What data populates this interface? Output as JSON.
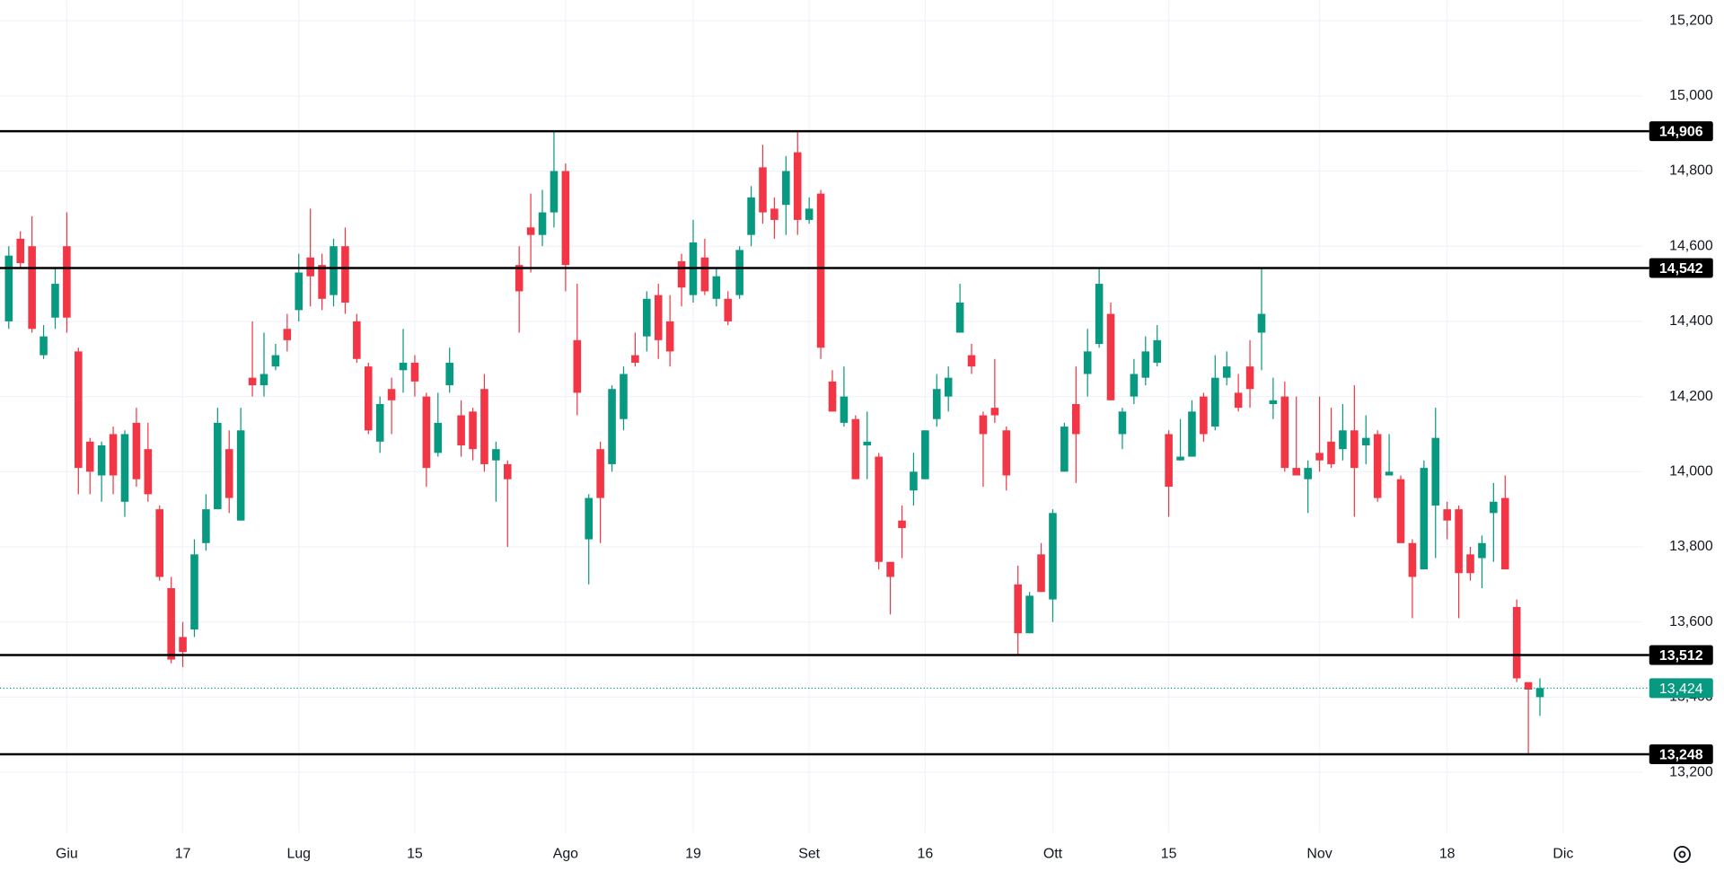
{
  "chart_data": {
    "type": "candlestick",
    "categories": [
      null,
      null,
      null,
      null,
      null,
      "Giu",
      null,
      null,
      null,
      null,
      null,
      null,
      null,
      null,
      null,
      "17",
      null,
      null,
      null,
      null,
      null,
      null,
      null,
      null,
      null,
      "Lug",
      null,
      null,
      null,
      null,
      null,
      null,
      null,
      null,
      null,
      "15",
      null,
      null,
      null,
      null,
      null,
      null,
      null,
      null,
      null,
      null,
      null,
      null,
      "Ago",
      null,
      null,
      null,
      null,
      null,
      null,
      null,
      null,
      null,
      null,
      "19",
      null,
      null,
      null,
      null,
      null,
      null,
      null,
      null,
      null,
      "Set",
      null,
      null,
      null,
      null,
      null,
      null,
      null,
      null,
      null,
      "16",
      null,
      null,
      null,
      null,
      null,
      null,
      null,
      null,
      null,
      null,
      "Ott",
      null,
      null,
      null,
      null,
      null,
      null,
      null,
      null,
      null,
      "15",
      null,
      null,
      null,
      null,
      null,
      null,
      null,
      null,
      null,
      null,
      null,
      null,
      "Nov",
      null,
      null,
      null,
      null,
      null,
      null,
      null,
      null,
      null,
      null,
      "18",
      null,
      null,
      null,
      null,
      null,
      null,
      null,
      null,
      null,
      "Dic"
    ],
    "open": [
      14400,
      14620,
      14600,
      14310,
      14410,
      14600,
      14320,
      14080,
      13990,
      14100,
      13920,
      14130,
      14060,
      13900,
      13690,
      13560,
      13580,
      13810,
      13900,
      14060,
      13870,
      14250,
      14230,
      14280,
      14380,
      14430,
      14570,
      14550,
      14470,
      14600,
      14400,
      14280,
      14080,
      14220,
      14270,
      14290,
      14200,
      14050,
      14230,
      14150,
      14160,
      14220,
      14030,
      14020,
      14550,
      14650,
      14630,
      14690,
      14800,
      14350,
      13820,
      14060,
      14020,
      14140,
      14310,
      14360,
      14470,
      14400,
      14560,
      14470,
      14570,
      14460,
      14460,
      14470,
      14630,
      14810,
      14700,
      14710,
      14850,
      14670,
      14740,
      14240,
      14130,
      14140,
      14070,
      14040,
      13760,
      13870,
      13950,
      13980,
      14140,
      14200,
      14370,
      14310,
      14150,
      14170,
      14110,
      13700,
      13570,
      13780,
      13660,
      14000,
      14180,
      14260,
      14340,
      14420,
      14100,
      14200,
      14250,
      14290,
      14100,
      14030,
      14040,
      14200,
      14120,
      14250,
      14210,
      14280,
      14370,
      14180,
      14200,
      14010,
      13980,
      14050,
      14080,
      14060,
      14110,
      14070,
      14100,
      13990,
      13980,
      13810,
      13740,
      13910,
      13900,
      13900,
      13780,
      13770,
      13890,
      13930,
      13640,
      13440,
      13400,
      null,
      null
    ],
    "high": [
      14600,
      14640,
      14680,
      14390,
      14540,
      14690,
      14330,
      14090,
      14080,
      14120,
      14110,
      14170,
      14130,
      13910,
      13720,
      13600,
      13820,
      13940,
      14170,
      14110,
      14170,
      14400,
      14370,
      14340,
      14420,
      14580,
      14700,
      14580,
      14620,
      14650,
      14420,
      14290,
      14200,
      14250,
      14380,
      14310,
      14210,
      14210,
      14330,
      14190,
      14170,
      14260,
      14080,
      14030,
      14600,
      14740,
      14750,
      14906,
      14820,
      14500,
      13940,
      14080,
      14230,
      14280,
      14370,
      14480,
      14500,
      14470,
      14580,
      14670,
      14620,
      14540,
      14480,
      14600,
      14760,
      14870,
      14730,
      14840,
      14906,
      14730,
      14750,
      14270,
      14280,
      14150,
      14160,
      14050,
      13760,
      13910,
      14050,
      14110,
      14260,
      14280,
      14500,
      14340,
      14160,
      14300,
      14120,
      13750,
      13680,
      13810,
      13900,
      14130,
      14280,
      14380,
      14540,
      14450,
      14170,
      14300,
      14360,
      14390,
      14110,
      14140,
      14190,
      14210,
      14310,
      14320,
      14260,
      14350,
      14540,
      14250,
      14240,
      14200,
      14030,
      14200,
      14170,
      14180,
      14230,
      14150,
      14110,
      14100,
      13990,
      13820,
      14030,
      14170,
      13920,
      13910,
      13800,
      13830,
      13970,
      13990,
      13660,
      13440,
      13450,
      null,
      null
    ],
    "low": [
      14380,
      14540,
      14370,
      14300,
      14380,
      14370,
      13940,
      13940,
      13920,
      13940,
      13880,
      13960,
      13920,
      13710,
      13490,
      13480,
      13560,
      13790,
      13900,
      13890,
      13870,
      14200,
      14200,
      14270,
      14320,
      14400,
      14440,
      14430,
      14440,
      14420,
      14290,
      14100,
      14050,
      14100,
      14210,
      14200,
      13960,
      14040,
      14210,
      14040,
      14030,
      14000,
      13920,
      13800,
      14370,
      14530,
      14600,
      14650,
      14480,
      14150,
      13700,
      13810,
      14000,
      14110,
      14280,
      14320,
      14300,
      14280,
      14440,
      14450,
      14470,
      14440,
      14390,
      14460,
      14600,
      14660,
      14620,
      14630,
      14630,
      14660,
      14300,
      14160,
      14120,
      13980,
      13980,
      13740,
      13620,
      13770,
      13910,
      13980,
      14120,
      14160,
      14370,
      14260,
      13960,
      14130,
      13950,
      13510,
      13570,
      13680,
      13600,
      14000,
      13970,
      14200,
      14330,
      14190,
      14060,
      14180,
      14230,
      14280,
      13880,
      14030,
      14040,
      14080,
      14110,
      14230,
      14160,
      14170,
      14270,
      14140,
      14000,
      13990,
      13890,
      14000,
      14010,
      14030,
      13880,
      14020,
      13920,
      13990,
      13810,
      13610,
      13740,
      13770,
      13820,
      13610,
      13710,
      13690,
      13760,
      13740,
      13440,
      13250,
      13350,
      null,
      null
    ],
    "close": [
      14575,
      14555,
      14380,
      14360,
      14500,
      14410,
      14010,
      14000,
      14070,
      13990,
      14100,
      13980,
      13940,
      13720,
      13500,
      13520,
      13780,
      13900,
      14130,
      13930,
      14110,
      14230,
      14260,
      14310,
      14350,
      14530,
      14520,
      14460,
      14600,
      14450,
      14300,
      14110,
      14180,
      14190,
      14290,
      14240,
      14010,
      14130,
      14290,
      14070,
      14060,
      14020,
      14060,
      13980,
      14480,
      14630,
      14690,
      14800,
      14550,
      14210,
      13930,
      13930,
      14220,
      14260,
      14290,
      14460,
      14350,
      14320,
      14490,
      14610,
      14480,
      14520,
      14400,
      14590,
      14730,
      14690,
      14670,
      14800,
      14670,
      14700,
      14330,
      14160,
      14200,
      13980,
      14080,
      13760,
      13720,
      13850,
      14000,
      14110,
      14220,
      14250,
      14450,
      14280,
      14100,
      14150,
      13990,
      13570,
      13670,
      13680,
      13890,
      14120,
      14100,
      14320,
      14500,
      14190,
      14160,
      14260,
      14320,
      14350,
      13960,
      14040,
      14160,
      14100,
      14250,
      14280,
      14170,
      14220,
      14420,
      14190,
      14010,
      13990,
      14010,
      14030,
      14020,
      14110,
      14010,
      14090,
      13930,
      14000,
      13810,
      13720,
      14010,
      14090,
      13870,
      13730,
      13730,
      13810,
      13920,
      13740,
      13450,
      13420,
      13424,
      null,
      null
    ],
    "up_color": "#089981",
    "down_color": "#f23645",
    "ylim": [
      13040,
      15255
    ],
    "yticks": [
      {
        "value": 13200,
        "label": "13,200"
      },
      {
        "value": 13400,
        "label": "13,400"
      },
      {
        "value": 13600,
        "label": "13,600"
      },
      {
        "value": 13800,
        "label": "13,800"
      },
      {
        "value": 14000,
        "label": "14,000"
      },
      {
        "value": 14200,
        "label": "14,200"
      },
      {
        "value": 14400,
        "label": "14,400"
      },
      {
        "value": 14600,
        "label": "14,600"
      },
      {
        "value": 14800,
        "label": "14,800"
      },
      {
        "value": 15000,
        "label": "15,000"
      },
      {
        "value": 15200,
        "label": "15,200"
      }
    ],
    "grid": true,
    "levels": [
      {
        "value": 14906,
        "label": "14,906"
      },
      {
        "value": 14542,
        "label": "14,542"
      },
      {
        "value": 13512,
        "label": "13,512"
      },
      {
        "value": 13248,
        "label": "13,248"
      }
    ],
    "level_color": "#000000",
    "last_price": {
      "value": 13424,
      "label": "13,424"
    }
  }
}
